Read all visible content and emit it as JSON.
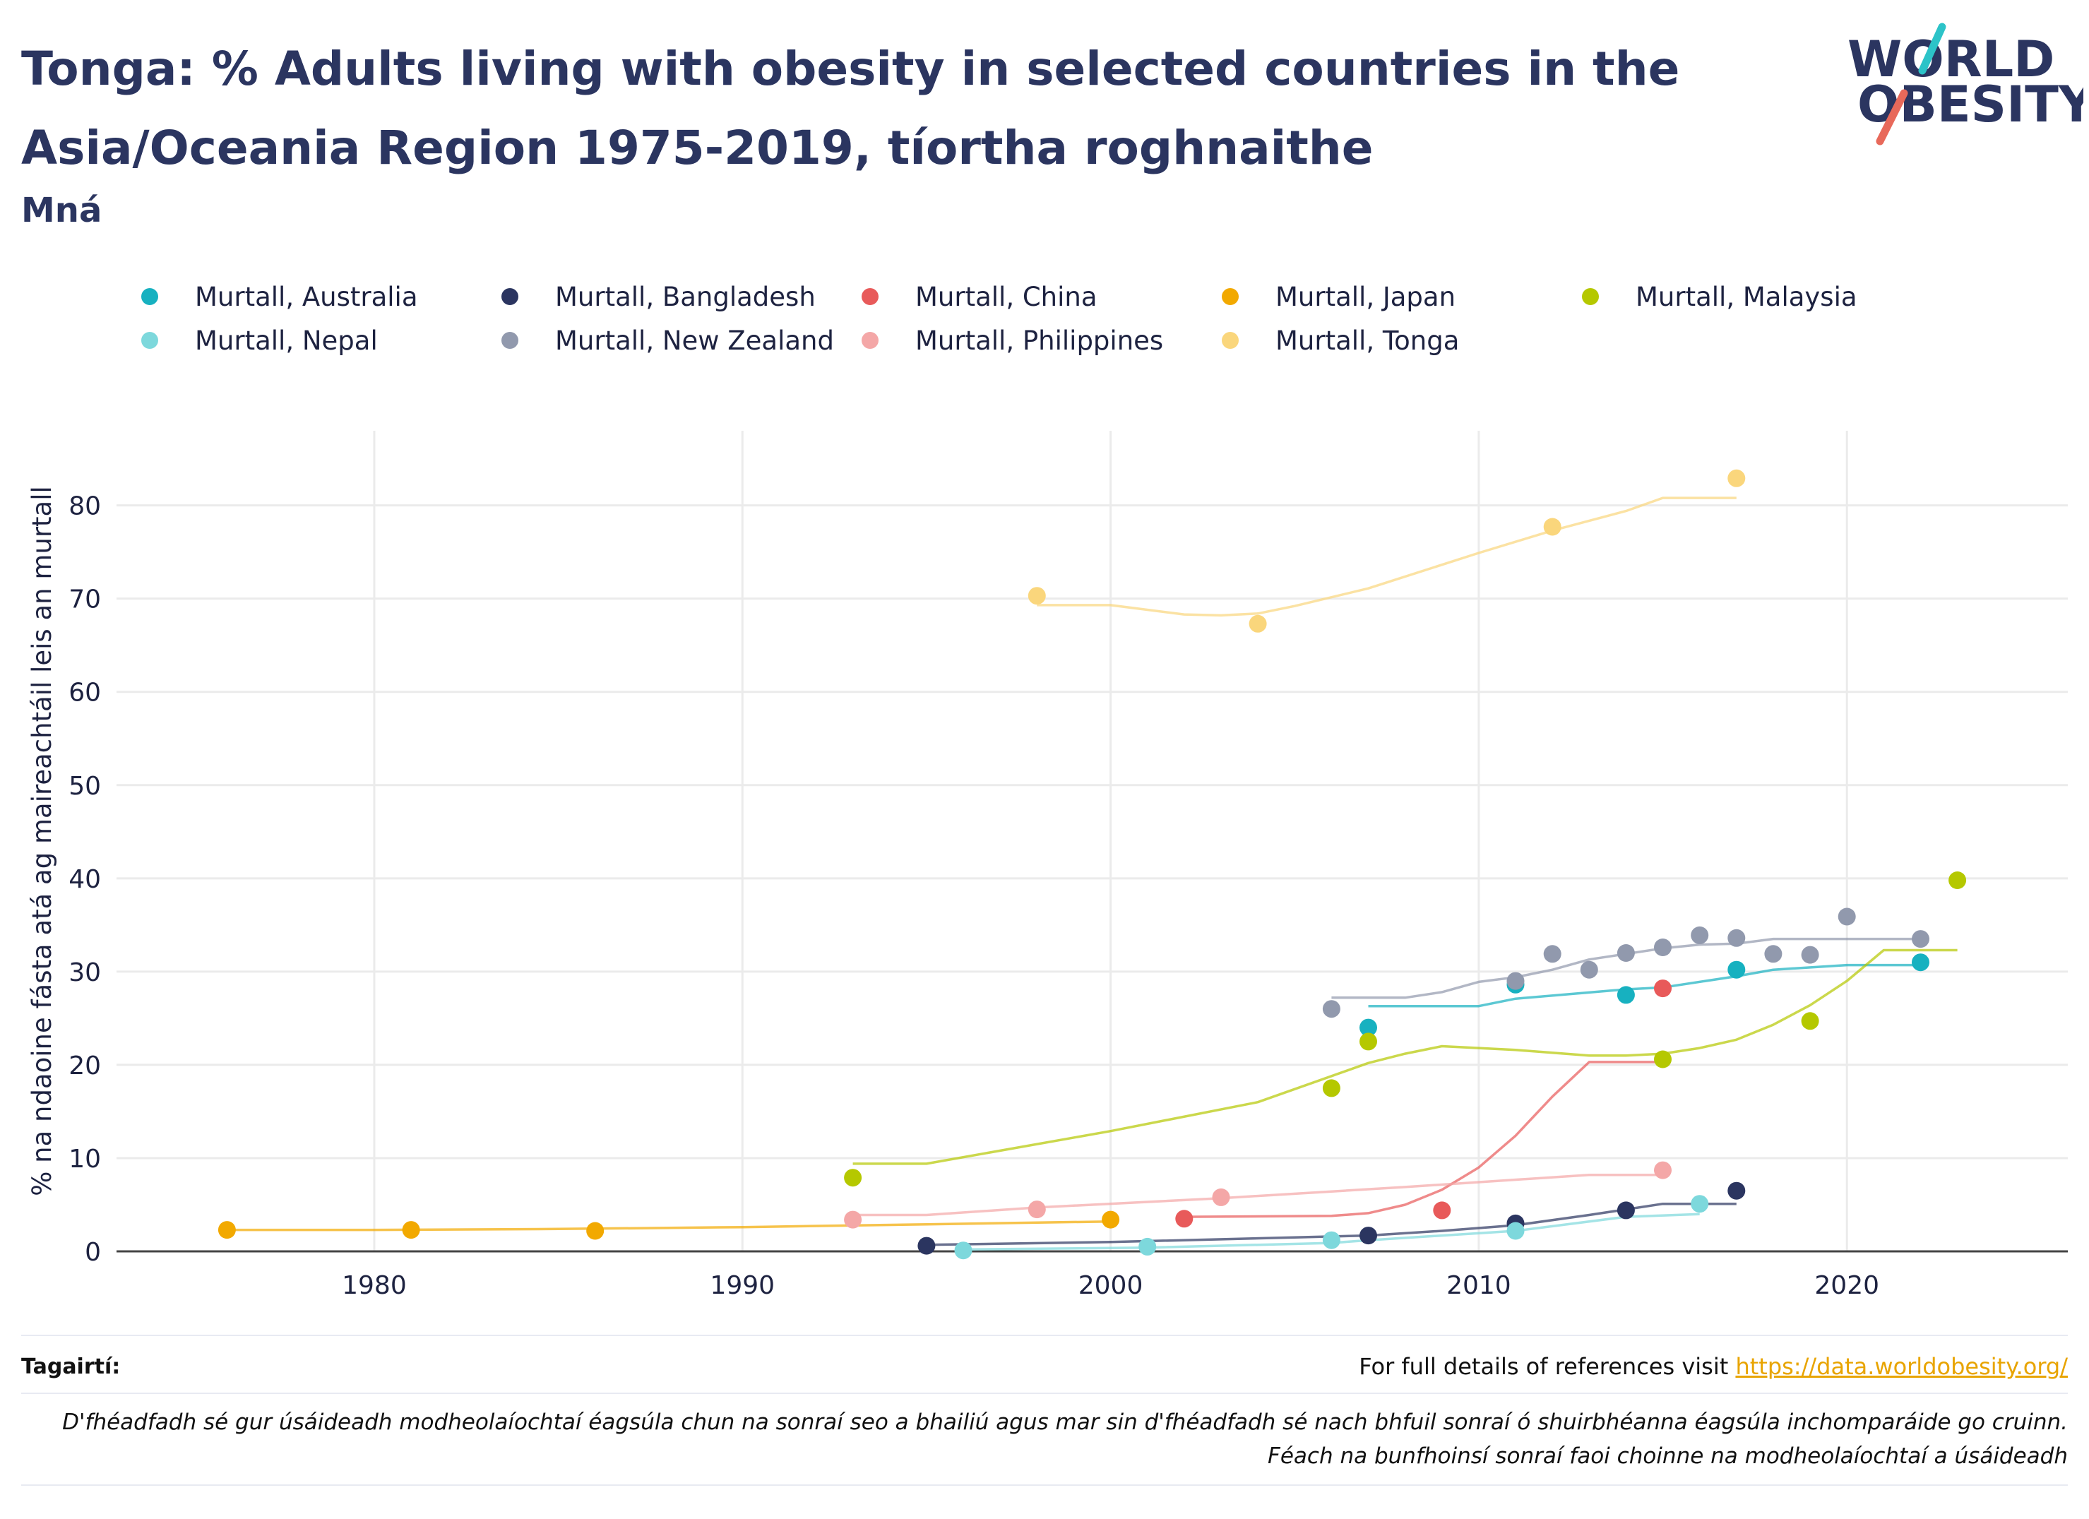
{
  "title": "Tonga: % Adults living with obesity in selected countries in the Asia/Oceania Region 1975-2019, tíortha roghnaithe",
  "subtitle": "Mná",
  "logo": {
    "line1": "WORLD",
    "line2": "OBESITY"
  },
  "footer": {
    "refs_label": "Tagairtí:",
    "refs_text": "For full details of references visit ",
    "refs_link": "https://data.worldobesity.org/",
    "disclaimer_line1": "D'fhéadfadh sé gur úsáideadh modheolaíochtaí éagsúla chun na sonraí seo a bhailiú agus mar sin d'fhéadfadh sé nach bhfuil sonraí ó shuirbhéanna éagsúla inchomparáide go cruinn.",
    "disclaimer_line2": "Féach na bunfhoinsí sonraí faoi choinne na modheolaíochtaí a úsáideadh"
  },
  "chart_data": {
    "type": "scatter",
    "title": "Tonga: % Adults living with obesity in selected countries in the Asia/Oceania Region 1975-2019, tíortha roghnaithe",
    "subtitle": "Mná",
    "xlabel": "",
    "ylabel": "% na ndaoine fásta atá ag maireachtáil leis an murtall",
    "xlim": [
      1973,
      2026
    ],
    "ylim": [
      0,
      88
    ],
    "xticks": [
      1980,
      1990,
      2000,
      2010,
      2020
    ],
    "yticks": [
      0,
      10,
      20,
      30,
      40,
      50,
      60,
      70,
      80
    ],
    "grid": true,
    "legend_position": "top",
    "series": [
      {
        "name": "Murtall, Australia",
        "color": "#17b1c0",
        "points": [
          [
            2007,
            24.0
          ],
          [
            2011,
            28.6
          ],
          [
            2014,
            27.5
          ],
          [
            2017,
            30.2
          ],
          [
            2022,
            31.0
          ]
        ],
        "trend": [
          [
            2007,
            26.3
          ],
          [
            2010,
            26.3
          ],
          [
            2011,
            27.1
          ],
          [
            2014,
            28.1
          ],
          [
            2015,
            28.3
          ],
          [
            2017,
            29.5
          ],
          [
            2018,
            30.2
          ],
          [
            2020,
            30.7
          ],
          [
            2022,
            30.7
          ]
        ]
      },
      {
        "name": "Murtall, Bangladesh",
        "color": "#2b3560",
        "points": [
          [
            1995,
            0.6
          ],
          [
            2007,
            1.7
          ],
          [
            2011,
            3.0
          ],
          [
            2014,
            4.4
          ],
          [
            2017,
            6.5
          ]
        ],
        "trend": [
          [
            1995,
            0.7
          ],
          [
            2000,
            1.0
          ],
          [
            2005,
            1.5
          ],
          [
            2007,
            1.7
          ],
          [
            2009,
            2.2
          ],
          [
            2011,
            2.8
          ],
          [
            2013,
            3.9
          ],
          [
            2014,
            4.5
          ],
          [
            2015,
            5.1
          ],
          [
            2017,
            5.1
          ]
        ]
      },
      {
        "name": "Murtall, China",
        "color": "#e85a5a",
        "points": [
          [
            2002,
            3.5
          ],
          [
            2009,
            4.4
          ],
          [
            2015,
            28.2
          ]
        ],
        "trend": [
          [
            2002,
            3.7
          ],
          [
            2006,
            3.8
          ],
          [
            2007,
            4.1
          ],
          [
            2008,
            5.0
          ],
          [
            2009,
            6.6
          ],
          [
            2010,
            9.0
          ],
          [
            2011,
            12.4
          ],
          [
            2012,
            16.6
          ],
          [
            2013,
            20.3
          ],
          [
            2015,
            20.3
          ]
        ]
      },
      {
        "name": "Murtall, Japan",
        "color": "#f2a900",
        "points": [
          [
            1976,
            2.3
          ],
          [
            1981,
            2.3
          ],
          [
            1986,
            2.2
          ],
          [
            2000,
            3.4
          ]
        ],
        "trend": [
          [
            1976,
            2.3
          ],
          [
            1980,
            2.3
          ],
          [
            1985,
            2.4
          ],
          [
            1990,
            2.6
          ],
          [
            1995,
            2.9
          ],
          [
            2000,
            3.2
          ]
        ]
      },
      {
        "name": "Murtall, Malaysia",
        "color": "#b5c800",
        "points": [
          [
            1993,
            7.9
          ],
          [
            2006,
            17.5
          ],
          [
            2007,
            22.5
          ],
          [
            2015,
            20.6
          ],
          [
            2019,
            24.7
          ],
          [
            2023,
            39.8
          ]
        ],
        "trend": [
          [
            1993,
            9.4
          ],
          [
            1995,
            9.4
          ],
          [
            2000,
            12.9
          ],
          [
            2004,
            16.0
          ],
          [
            2006,
            18.8
          ],
          [
            2007,
            20.2
          ],
          [
            2008,
            21.2
          ],
          [
            2009,
            22.0
          ],
          [
            2011,
            21.6
          ],
          [
            2013,
            21.0
          ],
          [
            2014,
            21.0
          ],
          [
            2015,
            21.2
          ],
          [
            2016,
            21.8
          ],
          [
            2017,
            22.7
          ],
          [
            2018,
            24.3
          ],
          [
            2019,
            26.4
          ],
          [
            2020,
            29.0
          ],
          [
            2021,
            32.3
          ],
          [
            2023,
            32.3
          ]
        ]
      },
      {
        "name": "Murtall, Nepal",
        "color": "#7dd8dc",
        "points": [
          [
            1996,
            0.1
          ],
          [
            2001,
            0.5
          ],
          [
            2006,
            1.2
          ],
          [
            2011,
            2.2
          ],
          [
            2016,
            5.1
          ]
        ],
        "trend": [
          [
            1996,
            0.2
          ],
          [
            2001,
            0.4
          ],
          [
            2006,
            0.9
          ],
          [
            2007,
            1.2
          ],
          [
            2011,
            2.2
          ],
          [
            2014,
            3.7
          ],
          [
            2016,
            4.0
          ]
        ]
      },
      {
        "name": "Murtall, New Zealand",
        "color": "#9199ad",
        "points": [
          [
            2006,
            26.0
          ],
          [
            2011,
            29.0
          ],
          [
            2012,
            31.9
          ],
          [
            2013,
            30.2
          ],
          [
            2014,
            32.0
          ],
          [
            2015,
            32.6
          ],
          [
            2016,
            33.9
          ],
          [
            2017,
            33.6
          ],
          [
            2018,
            31.9
          ],
          [
            2019,
            31.8
          ],
          [
            2020,
            35.9
          ],
          [
            2022,
            33.5
          ]
        ],
        "trend": [
          [
            2006,
            27.2
          ],
          [
            2008,
            27.2
          ],
          [
            2009,
            27.8
          ],
          [
            2010,
            28.9
          ],
          [
            2011,
            29.4
          ],
          [
            2012,
            30.2
          ],
          [
            2013,
            31.3
          ],
          [
            2014,
            31.9
          ],
          [
            2015,
            32.5
          ],
          [
            2016,
            32.9
          ],
          [
            2017,
            33.0
          ],
          [
            2018,
            33.5
          ],
          [
            2022,
            33.5
          ]
        ]
      },
      {
        "name": "Murtall, Philippines",
        "color": "#f4a7a7",
        "points": [
          [
            1993,
            3.4
          ],
          [
            1998,
            4.5
          ],
          [
            2003,
            5.8
          ],
          [
            2015,
            8.7
          ]
        ],
        "trend": [
          [
            1993,
            3.9
          ],
          [
            1995,
            3.9
          ],
          [
            1998,
            4.7
          ],
          [
            2003,
            5.7
          ],
          [
            2008,
            6.9
          ],
          [
            2013,
            8.2
          ],
          [
            2015,
            8.2
          ]
        ]
      },
      {
        "name": "Murtall, Tonga",
        "color": "#fad67c",
        "points": [
          [
            1998,
            70.3
          ],
          [
            2004,
            67.3
          ],
          [
            2012,
            77.7
          ],
          [
            2017,
            82.9
          ]
        ],
        "trend": [
          [
            1998,
            69.3
          ],
          [
            2000,
            69.3
          ],
          [
            2002,
            68.3
          ],
          [
            2003,
            68.2
          ],
          [
            2004,
            68.4
          ],
          [
            2005,
            69.2
          ],
          [
            2007,
            71.1
          ],
          [
            2010,
            74.9
          ],
          [
            2012,
            77.3
          ],
          [
            2014,
            79.4
          ],
          [
            2015,
            80.8
          ],
          [
            2017,
            80.8
          ]
        ]
      }
    ]
  }
}
